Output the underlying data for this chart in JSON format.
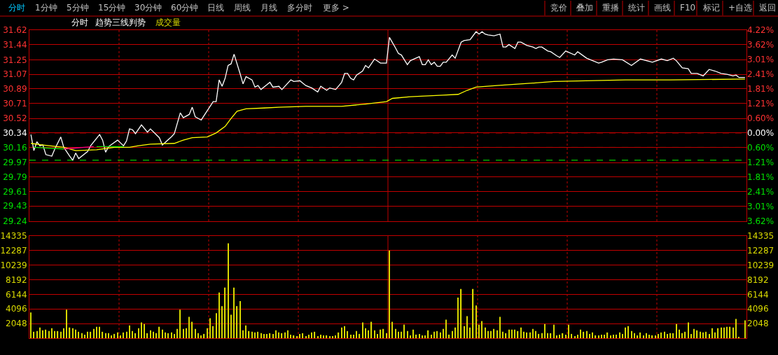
{
  "chart_data": [
    {
      "type": "other",
      "annotations": [
        "分时",
        "1分钟",
        "5分钟",
        "15分钟",
        "30分钟",
        "60分钟",
        "日线",
        "周线",
        "月线",
        "多分时",
        "更多 >"
      ]
    },
    {
      "type": "other",
      "annotations": [
        "竞价",
        "叠加",
        "重播",
        "统计",
        "画线",
        "F10",
        "标记",
        "+自选",
        "返回"
      ]
    },
    {
      "type": "line",
      "annotations": [
        "趋势三线判势"
      ],
      "categories": [
        null,
        null,
        null,
        null,
        null,
        null,
        null,
        null,
        null,
        null,
        null,
        null,
        null,
        null,
        null,
        null,
        null,
        null,
        null,
        null,
        null,
        null,
        null,
        null,
        null,
        null,
        null,
        null,
        null,
        null,
        null,
        null,
        null,
        null,
        null,
        null,
        null,
        null,
        null,
        null,
        null,
        null,
        null,
        null,
        null,
        null,
        null,
        null,
        null,
        null,
        null,
        null,
        null,
        null,
        null,
        null,
        null,
        null,
        null,
        null,
        null,
        null,
        null,
        null,
        null,
        null,
        null,
        null,
        null,
        null,
        null,
        null,
        null,
        null,
        null,
        null,
        null,
        null,
        null,
        null,
        null,
        null,
        null,
        null,
        null,
        null,
        null,
        null,
        null,
        null,
        null,
        null,
        null,
        null,
        null,
        null,
        null,
        null,
        null,
        null,
        null,
        null,
        null,
        null,
        null,
        null,
        null,
        null,
        null,
        null,
        null,
        null,
        null,
        null,
        null,
        null,
        null,
        null,
        null,
        null,
        null,
        null,
        null,
        null,
        null,
        null,
        null,
        null,
        null,
        null,
        null,
        null,
        null,
        null,
        null,
        null,
        null,
        null,
        null,
        null,
        null,
        null,
        null,
        null,
        null,
        null,
        null,
        null,
        null,
        null,
        null,
        null,
        null,
        null,
        null,
        null,
        null,
        null,
        null,
        null,
        null,
        null,
        null,
        null,
        null,
        null,
        null,
        null,
        null,
        null,
        null,
        null,
        null,
        null,
        null,
        null,
        null,
        null,
        null,
        null,
        null,
        null,
        null,
        null,
        null,
        null,
        null,
        null,
        null,
        null,
        null,
        null,
        null,
        null,
        null,
        null,
        null,
        null,
        null,
        null,
        null,
        null,
        null,
        null,
        null,
        null,
        null,
        null,
        null,
        null,
        null,
        null,
        null,
        null,
        null,
        null,
        null,
        null,
        null,
        null,
        null,
        null,
        null,
        null,
        null,
        null,
        null,
        null,
        null,
        null,
        null,
        null,
        null,
        null,
        null,
        null,
        null,
        null,
        null,
        null
      ],
      "series": [
        {
          "name": "分时",
          "color": "#ffffff",
          "values": [
            30.32,
            30.12,
            30.23,
            30.18,
            30.19,
            30.07,
            null,
            30.05,
            30.14,
            null,
            30.29,
            30.16,
            null,
            30.05,
            30.0,
            30.09,
            30.02,
            null,
            null,
            30.11,
            30.18,
            null,
            null,
            30.32,
            30.25,
            30.1,
            30.17,
            null,
            null,
            30.25,
            null,
            30.18,
            30.24,
            30.39,
            30.38,
            30.33,
            null,
            30.44,
            null,
            30.35,
            30.39,
            null,
            null,
            30.28,
            30.19,
            null,
            null,
            30.29,
            30.33,
            null,
            30.59,
            30.53,
            null,
            30.57,
            30.66,
            30.54,
            null,
            30.5,
            null,
            null,
            null,
            30.73,
            30.73,
            31.0,
            30.92,
            31.02,
            31.18,
            31.2,
            31.32,
            null,
            31.08,
            30.95,
            31.04,
            null,
            31.0,
            30.91,
            30.93,
            30.88,
            null,
            null,
            30.97,
            30.91,
            null,
            30.92,
            30.88,
            null,
            null,
            31.0,
            30.98,
            null,
            30.99,
            null,
            30.93,
            null,
            30.9,
            null,
            30.85,
            30.92,
            null,
            30.87,
            30.9,
            null,
            30.88,
            null,
            30.97,
            31.08,
            31.08,
            31.02,
            31.0,
            31.06,
            null,
            31.11,
            31.18,
            31.15,
            null,
            31.26,
            null,
            31.21,
            null,
            31.21,
            31.53,
            null,
            31.4,
            31.33,
            31.31,
            null,
            31.19,
            31.24,
            null,
            null,
            31.29,
            31.19,
            31.19,
            31.25,
            31.19,
            31.22,
            31.17,
            31.17,
            31.22,
            31.22,
            null,
            31.31,
            31.27,
            null,
            31.47,
            31.49,
            null,
            31.5,
            null,
            31.6,
            31.57,
            31.6,
            31.57,
            31.56,
            null,
            31.55,
            null,
            31.57,
            31.41,
            31.41,
            31.44,
            null,
            31.39,
            31.47,
            31.47,
            null,
            31.43,
            null,
            31.41,
            31.39,
            31.41,
            31.41,
            null,
            31.36,
            31.35,
            null,
            31.3,
            31.28,
            null,
            31.36,
            null,
            null,
            31.31,
            31.35,
            null,
            null,
            31.27,
            null,
            null,
            null,
            31.21,
            31.22,
            null,
            31.25,
            null,
            31.26,
            null,
            null,
            31.25,
            null,
            null,
            31.18,
            null,
            null,
            31.26,
            null,
            null,
            null,
            31.22,
            null,
            null,
            31.26,
            null,
            31.24,
            null,
            31.27,
            31.24,
            null,
            31.15,
            null,
            31.14,
            31.08,
            null,
            31.08,
            null,
            31.05,
            null,
            31.13,
            null,
            31.11,
            null,
            31.08,
            null,
            31.07,
            null,
            31.05,
            31.06,
            31.03,
            null,
            31.03
          ]
        },
        {
          "color": "#ffff00",
          "values": [
            30.21,
            null,
            null,
            null,
            30.19,
            null,
            null,
            null,
            null,
            null,
            null,
            30.16,
            null,
            null,
            null,
            30.12,
            null,
            null,
            null,
            null,
            null,
            null,
            30.13,
            null,
            null,
            null,
            null,
            null,
            30.16,
            null,
            null,
            null,
            null,
            30.16,
            null,
            null,
            30.18,
            null,
            null,
            null,
            30.2,
            null,
            null,
            null,
            null,
            null,
            null,
            null,
            30.21,
            null,
            null,
            30.25,
            null,
            null,
            30.28,
            null,
            null,
            null,
            null,
            30.29,
            null,
            null,
            30.34,
            null,
            null,
            30.42,
            null,
            30.52,
            null,
            30.61,
            null,
            null,
            30.64,
            null,
            null,
            null,
            null,
            null,
            30.65,
            null,
            null,
            null,
            null,
            30.66,
            null,
            null,
            null,
            null,
            null,
            null,
            null,
            null,
            30.67,
            null,
            null,
            null,
            null,
            null,
            null,
            null,
            null,
            null,
            null,
            null,
            30.67,
            null,
            null,
            null,
            null,
            null,
            null,
            null,
            30.7,
            null,
            null,
            null,
            null,
            null,
            null,
            30.73,
            null,
            30.77,
            null,
            null,
            null,
            null,
            null,
            30.79,
            null,
            null,
            null,
            null,
            null,
            null,
            null,
            null,
            null,
            null,
            30.81,
            null,
            null,
            null,
            null,
            30.82,
            null,
            null,
            30.87,
            null,
            null,
            30.91,
            null,
            null,
            null,
            null,
            null,
            null,
            30.93,
            null,
            null,
            null,
            null,
            null,
            null,
            null,
            null,
            null,
            null,
            null,
            30.96,
            null,
            null,
            null,
            null,
            null,
            null,
            30.98,
            null,
            null,
            null,
            null,
            null,
            null,
            null,
            null,
            null,
            null,
            null,
            null,
            null,
            null,
            null,
            null,
            null,
            null,
            null,
            null,
            null,
            null,
            null,
            31.0,
            null,
            null,
            null,
            null,
            null,
            null,
            null,
            null,
            null,
            null,
            null,
            null,
            null,
            null,
            31.0,
            null,
            null,
            null,
            null,
            null,
            null,
            null,
            null,
            null,
            null,
            null,
            null,
            null,
            null,
            null,
            null,
            null,
            null,
            null,
            null,
            null,
            null,
            null,
            null,
            31.01
          ]
        },
        {
          "color": "#00e000",
          "values": [
            null,
            30.16,
            null,
            null,
            null,
            null,
            null,
            null,
            null,
            null,
            null,
            30.14,
            null,
            null,
            null,
            null,
            null,
            null,
            null,
            null,
            null,
            null,
            null,
            null,
            null,
            null,
            null,
            null,
            null,
            null,
            null,
            null,
            null,
            null,
            null,
            null,
            null,
            null,
            null,
            null,
            null,
            null,
            null,
            null,
            null,
            null,
            null,
            null,
            null,
            null,
            null,
            null,
            null,
            null,
            null,
            null,
            null,
            null,
            null,
            null,
            null,
            null,
            null,
            null,
            null,
            null,
            null,
            null,
            null,
            null,
            null,
            null,
            null,
            null,
            null,
            null,
            null,
            null,
            null,
            null,
            null,
            null,
            null,
            null,
            null,
            null,
            null,
            null,
            null,
            null,
            null,
            null,
            null,
            null,
            null,
            null,
            null,
            null,
            null,
            null,
            null,
            null,
            null,
            null,
            null,
            null,
            null,
            null,
            null,
            null,
            null,
            null,
            null,
            null,
            null,
            null,
            null,
            null,
            null,
            null,
            null,
            null,
            null,
            null,
            null,
            null,
            null,
            null,
            null,
            null,
            null,
            null,
            null,
            null,
            null,
            null,
            null,
            null,
            null,
            null,
            null,
            null,
            null,
            null,
            null,
            null,
            null,
            null,
            null,
            null,
            null,
            null,
            null,
            null,
            null,
            null,
            null,
            null,
            null,
            null,
            null,
            null,
            null,
            null,
            null,
            null,
            null,
            null,
            null,
            null,
            null,
            null,
            null,
            null,
            null,
            null,
            null,
            null,
            null,
            null,
            null,
            null,
            null,
            null,
            null,
            null,
            null,
            null,
            null,
            null,
            null,
            null,
            null,
            null,
            null,
            null,
            null,
            null,
            null,
            null,
            null,
            null,
            null,
            null,
            null,
            null,
            null,
            null,
            null,
            null,
            null,
            null,
            null,
            null,
            null,
            null,
            null,
            null,
            null,
            null,
            null,
            null,
            null,
            null,
            null,
            null,
            null,
            null,
            null,
            null,
            null,
            null,
            null,
            null,
            null,
            null,
            null,
            null,
            null,
            null
          ]
        },
        {
          "color": "#ff0080",
          "values": [
            null,
            null,
            null,
            null,
            null,
            null,
            null,
            null,
            null,
            null,
            null,
            30.14,
            null,
            null,
            null,
            null,
            null,
            null,
            null,
            null,
            null,
            30.17,
            null,
            null,
            null,
            null,
            null,
            null,
            null,
            null,
            null,
            null,
            null,
            null,
            null,
            null,
            null,
            null,
            null,
            null,
            null,
            null,
            null,
            null,
            null,
            null,
            null,
            null,
            null,
            null,
            null,
            null,
            null,
            null,
            null,
            null,
            null,
            null,
            null,
            null,
            null,
            null,
            null,
            null,
            null,
            null,
            null,
            null,
            null,
            null,
            null,
            null,
            null,
            null,
            null,
            null,
            null,
            null,
            null,
            null,
            null,
            null,
            null,
            null,
            null,
            null,
            null,
            null,
            null,
            null,
            null,
            null,
            null,
            null,
            null,
            null,
            null,
            null,
            null,
            null,
            null,
            null,
            null,
            null,
            null,
            null,
            null,
            null,
            null,
            null,
            null,
            null,
            null,
            null,
            null,
            null,
            null,
            null,
            null,
            null,
            null,
            null,
            null,
            null,
            null,
            null,
            null,
            null,
            null,
            null,
            null,
            null,
            null,
            null,
            null,
            null,
            null,
            null,
            null,
            null,
            null,
            null,
            null,
            null,
            null,
            null,
            null,
            null,
            null,
            null,
            null,
            null,
            null,
            null,
            null,
            null,
            null,
            null,
            null,
            null,
            null,
            null,
            null,
            null,
            null,
            null,
            null,
            null,
            null,
            null,
            null,
            null,
            null,
            null,
            null,
            null,
            null,
            null,
            null,
            null,
            null,
            null,
            null,
            null,
            null,
            null,
            null,
            null,
            null,
            null,
            null,
            null,
            null,
            null,
            null,
            null,
            null,
            null,
            null,
            null,
            null,
            null,
            null,
            null,
            null,
            null,
            null,
            null,
            null,
            null,
            null,
            null,
            null,
            null,
            null,
            null,
            null,
            null,
            null,
            null,
            null,
            null,
            null,
            null,
            null,
            null,
            null,
            null,
            null,
            null,
            null,
            null,
            null,
            null,
            null,
            null,
            null,
            null,
            null,
            null
          ]
        },
        {
          "color": "#00e000",
          "values": [
            null,
            null,
            null,
            null,
            null,
            null,
            null,
            null,
            null,
            null,
            null,
            null,
            null,
            null,
            null,
            null,
            null,
            null,
            null,
            null,
            null,
            null,
            30.17,
            null,
            null,
            null,
            null,
            null,
            null,
            null,
            null,
            30.17,
            null,
            null,
            null,
            null,
            null,
            null,
            null,
            null,
            null,
            null,
            null,
            null,
            null,
            null,
            null,
            null,
            null,
            null,
            null,
            null,
            null,
            null,
            null,
            null,
            null,
            null,
            null,
            null,
            null,
            null,
            null,
            null,
            null,
            null,
            null,
            null,
            null,
            null,
            null,
            null,
            null,
            null,
            null,
            null,
            null,
            null,
            null,
            null,
            null,
            null,
            null,
            null,
            null,
            null,
            null,
            null,
            null,
            null,
            null,
            null,
            null,
            null,
            null,
            null,
            null,
            null,
            null,
            null,
            null,
            null,
            null,
            null,
            null,
            null,
            null,
            null,
            null,
            null,
            null,
            null,
            null,
            null,
            null,
            null,
            null,
            null,
            null,
            null,
            null,
            null,
            null,
            null,
            null,
            null,
            null,
            null,
            null,
            null,
            null,
            null,
            null,
            null,
            null,
            null,
            null,
            null,
            null,
            null,
            null,
            null,
            null,
            null,
            null,
            null,
            null,
            null,
            null,
            null,
            null,
            null,
            null,
            null,
            null,
            null,
            null,
            null,
            null,
            null,
            null,
            null,
            null,
            null,
            null,
            null,
            null,
            null,
            null,
            null,
            null,
            null,
            null,
            null,
            null,
            null,
            null,
            null,
            null,
            null,
            null,
            null,
            null,
            null,
            null,
            null,
            null,
            null,
            null,
            null,
            null,
            null,
            null,
            null,
            null,
            null,
            null,
            null,
            null,
            null,
            null,
            null,
            null,
            null,
            null,
            null,
            null,
            null,
            null,
            null,
            null,
            null,
            null,
            null,
            null,
            null,
            null,
            null,
            null,
            null,
            null,
            null,
            null,
            null,
            null,
            null,
            null,
            null,
            null,
            null,
            null,
            null,
            null,
            null,
            null,
            null,
            null,
            null,
            null,
            null
          ]
        }
      ],
      "ylim": [
        29.24,
        31.62
      ],
      "yticks": [
        31.62,
        31.44,
        31.25,
        31.07,
        30.89,
        30.71,
        30.52,
        30.34,
        30.16,
        29.97,
        29.79,
        29.61,
        29.43,
        29.24
      ],
      "y2lim": [
        -3.62,
        4.22
      ],
      "y2ticks": [
        {
          "value": 4.22,
          "label": "4.22%"
        },
        {
          "value": 3.62,
          "label": "3.62%"
        },
        {
          "value": 3.01,
          "label": "3.01%"
        },
        {
          "value": 2.41,
          "label": "2.41%"
        },
        {
          "value": 1.81,
          "label": "1.81%"
        },
        {
          "value": 1.21,
          "label": "1.21%"
        },
        {
          "value": 0.6,
          "label": "0.60%"
        },
        {
          "value": 0,
          "label": "0.00%"
        },
        {
          "value": -0.6,
          "label": "0.60%"
        },
        {
          "value": -1.21,
          "label": "1.21%"
        },
        {
          "value": -1.81,
          "label": "1.81%"
        },
        {
          "value": -2.41,
          "label": "2.41%"
        },
        {
          "value": -3.01,
          "label": "3.01%"
        },
        {
          "value": -3.62,
          "label": "3.62%"
        }
      ],
      "grid": "y",
      "ref_lines": [
        {
          "axis": "y",
          "value": 30.34,
          "color": "#ff0000",
          "line_style": "dashed"
        },
        {
          "axis": "y",
          "value": 30.16,
          "color": "#ffff00",
          "line_style": "dashed"
        },
        {
          "axis": "y",
          "value": 30.0,
          "color": "#00ff00",
          "line_style": "dashed"
        }
      ]
    },
    {
      "type": "bar",
      "categories": [
        null,
        null,
        null,
        null,
        null,
        null,
        null,
        null,
        null,
        null,
        null,
        null,
        null,
        null,
        null,
        null,
        null,
        null,
        null,
        null,
        null,
        null,
        null,
        null,
        null,
        null,
        null,
        null,
        null,
        null,
        null,
        null,
        null,
        null,
        null,
        null,
        null,
        null,
        null,
        null,
        null,
        null,
        null,
        null,
        null,
        null,
        null,
        null,
        null,
        null,
        null,
        null,
        null,
        null,
        null,
        null,
        null,
        null,
        null,
        null,
        null,
        null,
        null,
        null,
        null,
        null,
        null,
        null,
        null,
        null,
        null,
        null,
        null,
        null,
        null,
        null,
        null,
        null,
        null,
        null,
        null,
        null,
        null,
        null,
        null,
        null,
        null,
        null,
        null,
        null,
        null,
        null,
        null,
        null,
        null,
        null,
        null,
        null,
        null,
        null,
        null,
        null,
        null,
        null,
        null,
        null,
        null,
        null,
        null,
        null,
        null,
        null,
        null,
        null,
        null,
        null,
        null,
        null,
        null,
        null,
        null,
        null,
        null,
        null,
        null,
        null,
        null,
        null,
        null,
        null,
        null,
        null,
        null,
        null,
        null,
        null,
        null,
        null,
        null,
        null,
        null,
        null,
        null,
        null,
        null,
        null,
        null,
        null,
        null,
        null,
        null,
        null,
        null,
        null,
        null,
        null,
        null,
        null,
        null,
        null,
        null,
        null,
        null,
        null,
        null,
        null,
        null,
        null,
        null,
        null,
        null,
        null,
        null,
        null,
        null,
        null,
        null,
        null,
        null,
        null,
        null,
        null,
        null,
        null,
        null,
        null,
        null,
        null,
        null,
        null,
        null,
        null,
        null,
        null,
        null,
        null,
        null,
        null,
        null,
        null,
        null,
        null,
        null,
        null,
        null,
        null,
        null,
        null,
        null,
        null,
        null,
        null,
        null,
        null,
        null,
        null,
        null,
        null,
        null,
        null,
        null,
        null,
        null,
        null,
        null,
        null,
        null,
        null,
        null,
        null,
        null,
        null,
        null,
        null,
        null,
        null,
        null,
        null,
        null,
        null
      ],
      "series": [
        {
          "name": "成交量",
          "color": "#d8d800",
          "values": [
            3600,
            900,
            1000,
            1500,
            1100,
            1200,
            1000,
            1400,
            1000,
            1000,
            900,
            1400,
            4000,
            1500,
            1400,
            1200,
            900,
            700,
            500,
            900,
            900,
            1300,
            1600,
            1600,
            900,
            700,
            700,
            400,
            600,
            800,
            400,
            800,
            900,
            1800,
            1000,
            700,
            1400,
            2200,
            2000,
            700,
            1100,
            900,
            700,
            1600,
            1200,
            800,
            700,
            800,
            600,
            1300,
            4000,
            1300,
            1400,
            3000,
            2300,
            1300,
            700,
            400,
            600,
            1400,
            2800,
            1700,
            3500,
            6400,
            4500,
            7100,
            13300,
            3300,
            7100,
            4500,
            5200,
            1100,
            1800,
            1000,
            900,
            800,
            900,
            700,
            600,
            600,
            700,
            600,
            1100,
            800,
            700,
            800,
            1100,
            500,
            400,
            300,
            600,
            700,
            300,
            500,
            800,
            900,
            300,
            500,
            400,
            400,
            300,
            300,
            400,
            800,
            1500,
            1700,
            1000,
            500,
            500,
            1000,
            600,
            2200,
            1400,
            1100,
            2300,
            1100,
            600,
            1200,
            1300,
            700,
            12300,
            2300,
            1300,
            900,
            900,
            1900,
            1000,
            400,
            1200,
            500,
            600,
            400,
            400,
            1100,
            500,
            900,
            1000,
            800,
            1300,
            2600,
            500,
            1000,
            1500,
            5700,
            6900,
            1700,
            3100,
            1500,
            6900,
            4600,
            1900,
            2400,
            1500,
            1000,
            1000,
            1300,
            1100,
            3000,
            900,
            700,
            1200,
            1200,
            1200,
            1000,
            1500,
            900,
            800,
            800,
            1300,
            1000,
            600,
            700,
            2000,
            700,
            700,
            1900,
            400,
            500,
            700,
            500,
            1900,
            600,
            300,
            500,
            1200,
            900,
            1000,
            600,
            800,
            400,
            400,
            500,
            500,
            800,
            400,
            500,
            500,
            800,
            600,
            1500,
            1700,
            1000,
            700,
            400,
            800,
            400,
            700,
            500,
            400,
            400,
            600,
            800,
            900,
            600,
            700,
            700,
            2000,
            1200,
            700,
            900,
            2200,
            600,
            1300,
            1100,
            900,
            800,
            900,
            600,
            1400,
            800,
            1400,
            1500,
            1500,
            1600,
            1600,
            1500,
            2700,
            100,
            null,
            2500
          ]
        }
      ],
      "ylim": [
        0,
        14335
      ],
      "yticks": [
        2048,
        4096,
        6144,
        8192,
        10239,
        12287,
        14335
      ],
      "y2lim": [
        0,
        14335
      ],
      "y2ticks": [
        2048,
        4096,
        6144,
        8192,
        10239,
        12287,
        14335
      ],
      "grid": "y"
    }
  ]
}
